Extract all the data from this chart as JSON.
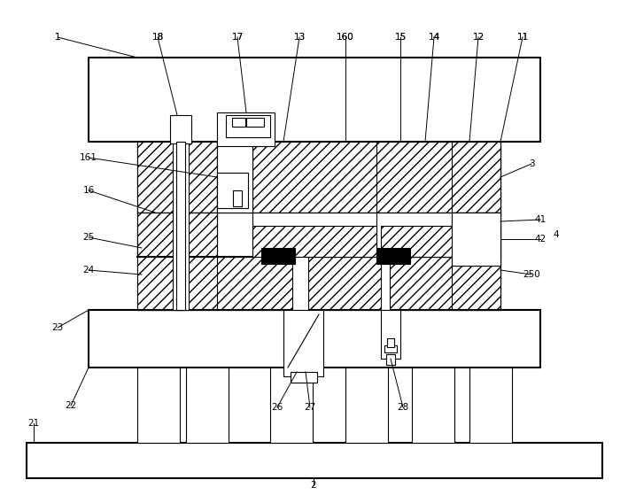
{
  "bg_color": "#ffffff",
  "lc": "#000000",
  "fig_width": 7.09,
  "fig_height": 5.68,
  "dpi": 100
}
